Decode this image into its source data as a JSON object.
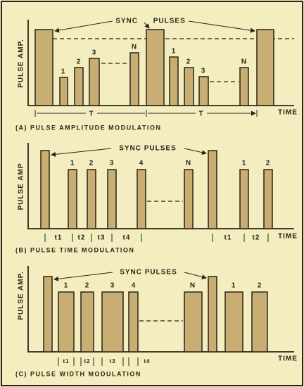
{
  "panels": [
    {
      "caption": "(A) PULSE AMPLITUDE MODULATION",
      "y_label": "PULSE AMP.",
      "x_label": "TIME",
      "sync_label": "SYNC PULSES",
      "pulse_labels": [
        "1",
        "2",
        "3",
        "N",
        "1",
        "2",
        "3",
        "N"
      ],
      "period_labels": [
        "T",
        "T"
      ]
    },
    {
      "caption": "(B) PULSE TIME MODULATION",
      "y_label": "PULSE AMP",
      "x_label": "TIME",
      "sync_label": "SYNC PULSES",
      "pulse_labels": [
        "1",
        "2",
        "3",
        "4",
        "N",
        "1",
        "2"
      ],
      "interval_labels": [
        "t1",
        "t2",
        "t3",
        "t4",
        "t1",
        "t2"
      ]
    },
    {
      "caption": "(C) PULSE WIDTH MODULATION",
      "y_label": "PULSE AMP.",
      "x_label": "TIME",
      "sync_label": "SYNC PULSES",
      "pulse_labels": [
        "1",
        "2",
        "3",
        "4",
        "N",
        "1",
        "2"
      ],
      "interval_labels": [
        "t1",
        "t2",
        "t3",
        "t4"
      ]
    }
  ]
}
